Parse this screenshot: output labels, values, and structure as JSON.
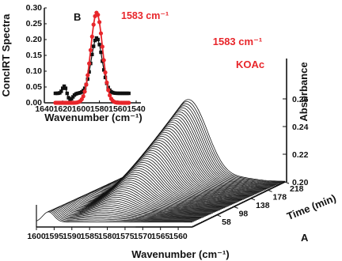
{
  "chart_data": [
    {
      "type": "line",
      "panel": "A",
      "style": "3D waterfall of time-resolved spectra",
      "xlabel": "Wavenumber (cm⁻¹)",
      "ylabel": "Absorbance",
      "zlabel": "Time (min)",
      "x_ticks": [
        1600,
        1595,
        1590,
        1585,
        1580,
        1575,
        1570,
        1565,
        1560
      ],
      "y_ticks": [
        0.2,
        0.22,
        0.24,
        0.26
      ],
      "y_tick_labels": [
        "0.20",
        "0.22",
        "0.24",
        "0.26"
      ],
      "time_ticks": [
        58,
        98,
        138,
        178,
        218
      ],
      "ylim": [
        0.2,
        0.27
      ],
      "xlim": [
        1600,
        1556
      ],
      "time_range": [
        0,
        218
      ],
      "annotation_wavenumber": "1583 cm⁻¹",
      "annotation_species": "KOAc",
      "panel_label": "A",
      "grid": false
    },
    {
      "type": "line",
      "panel": "B",
      "panel_label": "B",
      "xlabel": "Wavenumber (cm⁻¹)",
      "ylabel": "ConcIRT Spectra",
      "xlim": [
        1640,
        1540
      ],
      "ylim": [
        0.0,
        0.3
      ],
      "x_ticks": [
        1640,
        1620,
        1600,
        1580,
        1560,
        1540
      ],
      "y_ticks": [
        0.0,
        0.05,
        0.1,
        0.15,
        0.2,
        0.25,
        0.3
      ],
      "y_tick_labels": [
        "0.00",
        "0.05",
        "0.10",
        "0.15",
        "0.20",
        "0.25",
        "0.30"
      ],
      "annotation": "1583 cm⁻¹",
      "series": [
        {
          "color": "#111111",
          "marker": "square",
          "center": 1583,
          "fwhm": 14,
          "peak": 0.205,
          "baseline": 0.03
        },
        {
          "color": "#e8262b",
          "marker": "circle",
          "center": 1583,
          "fwhm": 15,
          "peak": 0.285,
          "baseline": 0.0
        }
      ],
      "grid": false
    }
  ],
  "colors": {
    "annotation": "#e8262b",
    "ink": "#111111"
  }
}
